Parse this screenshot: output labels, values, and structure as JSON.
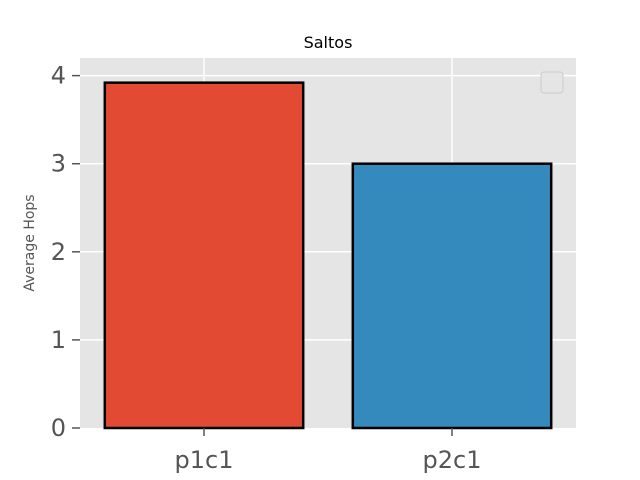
{
  "chart_data": {
    "type": "bar",
    "title": "Saltos",
    "xlabel": "",
    "ylabel": "Average Hops",
    "categories": [
      "p1c1",
      "p2c1"
    ],
    "values": [
      3.92,
      3.0
    ],
    "ylim": [
      0,
      4.2
    ],
    "yticks": [
      0,
      1,
      2,
      3,
      4
    ],
    "grid": true,
    "legend": "top-right (empty)",
    "colors": {
      "bars": [
        "#E24A33",
        "#348ABD"
      ],
      "bar_edge": "#000000",
      "plot_background": "#E5E5E5",
      "grid": "#FFFFFF",
      "tick_text": "#555555"
    }
  }
}
